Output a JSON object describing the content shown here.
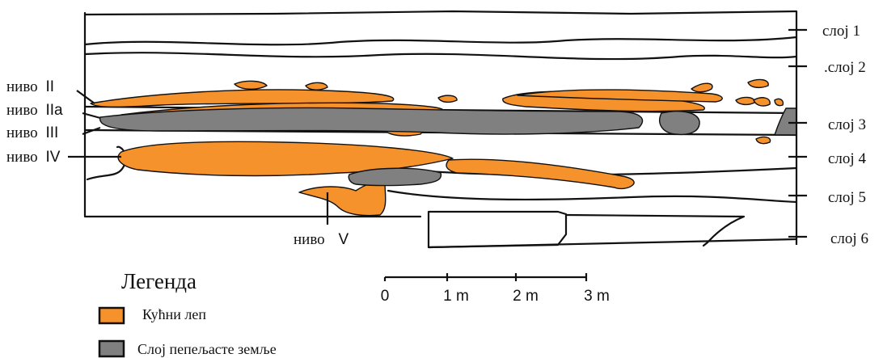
{
  "layers": [
    {
      "id": "layer-1",
      "label": "слој 1"
    },
    {
      "id": "layer-2",
      "label": ".слој 2"
    },
    {
      "id": "layer-3",
      "label": "слој 3"
    },
    {
      "id": "layer-4",
      "label": "слој 4"
    },
    {
      "id": "layer-5",
      "label": "слој 5"
    },
    {
      "id": "layer-6",
      "label": "слој 6"
    }
  ],
  "levels": [
    {
      "id": "level-ii",
      "prefix": "ниво",
      "numeral": "II"
    },
    {
      "id": "level-iia",
      "prefix": "ниво",
      "numeral": "IIa"
    },
    {
      "id": "level-iii",
      "prefix": "ниво",
      "numeral": "III"
    },
    {
      "id": "level-iv",
      "prefix": "ниво",
      "numeral": "IV"
    },
    {
      "id": "level-v",
      "prefix": "ниво",
      "numeral": "V"
    }
  ],
  "scale": {
    "labels": [
      "0",
      "1 m",
      "2 m",
      "3 m"
    ]
  },
  "legend": {
    "title": "Легенда",
    "items": [
      {
        "label": "Кућни леп",
        "color": "#f5922b"
      },
      {
        "label": "Слој пепељасте земље",
        "color": "#808080"
      }
    ]
  }
}
